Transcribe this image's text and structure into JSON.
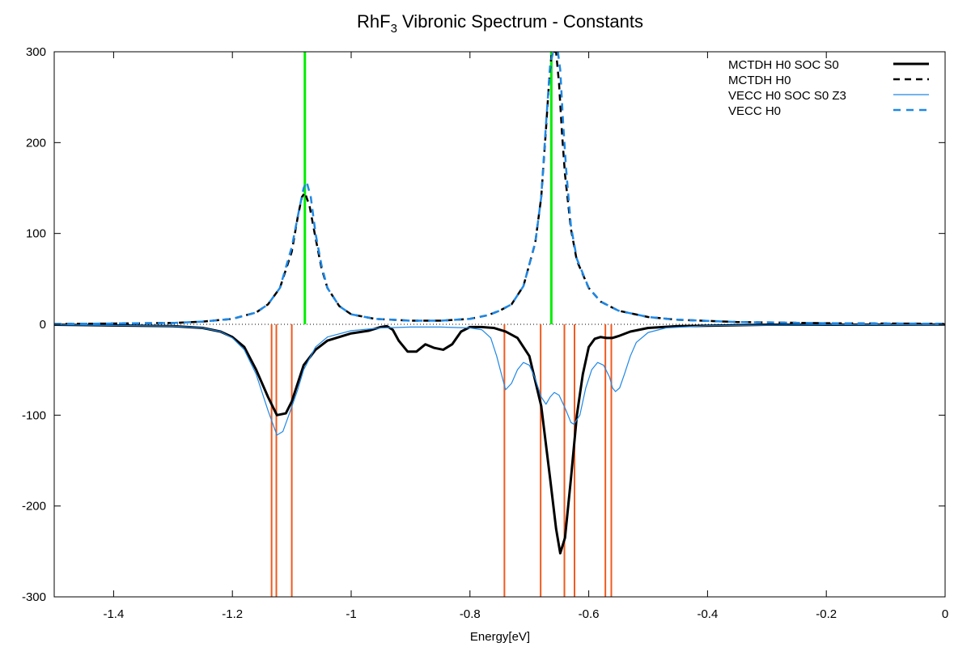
{
  "chart_data": {
    "type": "line",
    "title": {
      "prefix": "RhF",
      "subscript": "3",
      "suffix": " Vibronic Spectrum  - Constants"
    },
    "xlabel": "Energy[eV]",
    "ylabel": "",
    "xlim": [
      -1.5,
      0
    ],
    "ylim": [
      -300,
      300
    ],
    "x_ticks": [
      -1.4,
      -1.2,
      -1.0,
      -0.8,
      -0.6,
      -0.4,
      -0.2,
      0
    ],
    "x_tick_labels": [
      "-1.4",
      "-1.2",
      "-1",
      "-0.8",
      "-0.6",
      "-0.4",
      "-0.2",
      "0"
    ],
    "y_ticks": [
      -300,
      -200,
      -100,
      0,
      100,
      200,
      300
    ],
    "y_tick_labels": [
      "-300",
      "-200",
      "-100",
      "0",
      "100",
      "200",
      "300"
    ],
    "legend_position": "top-right",
    "series": [
      {
        "name": "MCTDH H0 SOC S0",
        "color": "#000000",
        "dash": "solid",
        "points": [
          [
            -1.5,
            -0.5
          ],
          [
            -1.3,
            -2
          ],
          [
            -1.25,
            -4
          ],
          [
            -1.22,
            -8
          ],
          [
            -1.2,
            -14
          ],
          [
            -1.18,
            -25
          ],
          [
            -1.16,
            -50
          ],
          [
            -1.14,
            -80
          ],
          [
            -1.125,
            -100
          ],
          [
            -1.11,
            -98
          ],
          [
            -1.1,
            -85
          ],
          [
            -1.09,
            -65
          ],
          [
            -1.08,
            -45
          ],
          [
            -1.06,
            -28
          ],
          [
            -1.04,
            -18
          ],
          [
            -1.0,
            -10
          ],
          [
            -0.97,
            -7
          ],
          [
            -0.95,
            -3
          ],
          [
            -0.94,
            -2
          ],
          [
            -0.93,
            -6
          ],
          [
            -0.92,
            -18
          ],
          [
            -0.905,
            -30
          ],
          [
            -0.89,
            -30
          ],
          [
            -0.875,
            -22
          ],
          [
            -0.86,
            -26
          ],
          [
            -0.845,
            -28
          ],
          [
            -0.83,
            -22
          ],
          [
            -0.815,
            -8
          ],
          [
            -0.8,
            -3
          ],
          [
            -0.78,
            -3
          ],
          [
            -0.76,
            -4
          ],
          [
            -0.74,
            -8
          ],
          [
            -0.72,
            -15
          ],
          [
            -0.7,
            -35
          ],
          [
            -0.68,
            -90
          ],
          [
            -0.665,
            -170
          ],
          [
            -0.655,
            -225
          ],
          [
            -0.648,
            -252
          ],
          [
            -0.64,
            -235
          ],
          [
            -0.63,
            -170
          ],
          [
            -0.62,
            -100
          ],
          [
            -0.61,
            -55
          ],
          [
            -0.6,
            -25
          ],
          [
            -0.59,
            -16
          ],
          [
            -0.58,
            -14
          ],
          [
            -0.57,
            -15
          ],
          [
            -0.56,
            -15
          ],
          [
            -0.55,
            -13
          ],
          [
            -0.53,
            -8
          ],
          [
            -0.5,
            -4
          ],
          [
            -0.45,
            -2
          ],
          [
            -0.3,
            -0.5
          ],
          [
            0,
            -0.2
          ]
        ]
      },
      {
        "name": "MCTDH H0",
        "color": "#000000",
        "dash": "8,6",
        "points": [
          [
            -1.5,
            0.3
          ],
          [
            -1.3,
            1.5
          ],
          [
            -1.25,
            3
          ],
          [
            -1.2,
            6
          ],
          [
            -1.16,
            13
          ],
          [
            -1.14,
            22
          ],
          [
            -1.12,
            40
          ],
          [
            -1.1,
            80
          ],
          [
            -1.09,
            118
          ],
          [
            -1.083,
            140
          ],
          [
            -1.078,
            145
          ],
          [
            -1.07,
            130
          ],
          [
            -1.06,
            95
          ],
          [
            -1.05,
            62
          ],
          [
            -1.04,
            40
          ],
          [
            -1.02,
            20
          ],
          [
            -1.0,
            11
          ],
          [
            -0.96,
            6
          ],
          [
            -0.9,
            4
          ],
          [
            -0.85,
            4
          ],
          [
            -0.8,
            6
          ],
          [
            -0.77,
            10
          ],
          [
            -0.75,
            15
          ],
          [
            -0.73,
            22
          ],
          [
            -0.71,
            42
          ],
          [
            -0.69,
            90
          ],
          [
            -0.68,
            140
          ],
          [
            -0.672,
            215
          ],
          [
            -0.666,
            275
          ],
          [
            -0.662,
            300
          ],
          [
            -0.655,
            300
          ],
          [
            -0.65,
            265
          ],
          [
            -0.645,
            210
          ],
          [
            -0.64,
            165
          ],
          [
            -0.63,
            105
          ],
          [
            -0.62,
            70
          ],
          [
            -0.6,
            40
          ],
          [
            -0.58,
            25
          ],
          [
            -0.55,
            15
          ],
          [
            -0.5,
            8
          ],
          [
            -0.45,
            5
          ],
          [
            -0.35,
            2.5
          ],
          [
            -0.2,
            1.2
          ],
          [
            0,
            0.6
          ]
        ]
      },
      {
        "name": "VECC    H0 SOC S0 Z3",
        "color": "#1e88e5",
        "dash": "solid",
        "points": [
          [
            -1.5,
            -0.5
          ],
          [
            -1.3,
            -2
          ],
          [
            -1.25,
            -4
          ],
          [
            -1.22,
            -8
          ],
          [
            -1.2,
            -15
          ],
          [
            -1.18,
            -28
          ],
          [
            -1.16,
            -55
          ],
          [
            -1.14,
            -95
          ],
          [
            -1.125,
            -122
          ],
          [
            -1.115,
            -118
          ],
          [
            -1.105,
            -100
          ],
          [
            -1.09,
            -72
          ],
          [
            -1.08,
            -50
          ],
          [
            -1.06,
            -25
          ],
          [
            -1.04,
            -14
          ],
          [
            -1.0,
            -7
          ],
          [
            -0.95,
            -4
          ],
          [
            -0.9,
            -3
          ],
          [
            -0.85,
            -3
          ],
          [
            -0.8,
            -4
          ],
          [
            -0.78,
            -6
          ],
          [
            -0.765,
            -15
          ],
          [
            -0.755,
            -35
          ],
          [
            -0.745,
            -60
          ],
          [
            -0.74,
            -72
          ],
          [
            -0.73,
            -65
          ],
          [
            -0.72,
            -50
          ],
          [
            -0.71,
            -42
          ],
          [
            -0.7,
            -45
          ],
          [
            -0.69,
            -60
          ],
          [
            -0.68,
            -80
          ],
          [
            -0.672,
            -88
          ],
          [
            -0.665,
            -80
          ],
          [
            -0.658,
            -75
          ],
          [
            -0.65,
            -78
          ],
          [
            -0.64,
            -92
          ],
          [
            -0.63,
            -108
          ],
          [
            -0.625,
            -110
          ],
          [
            -0.615,
            -100
          ],
          [
            -0.605,
            -70
          ],
          [
            -0.595,
            -50
          ],
          [
            -0.585,
            -42
          ],
          [
            -0.575,
            -45
          ],
          [
            -0.565,
            -58
          ],
          [
            -0.56,
            -70
          ],
          [
            -0.555,
            -74
          ],
          [
            -0.548,
            -70
          ],
          [
            -0.54,
            -55
          ],
          [
            -0.53,
            -35
          ],
          [
            -0.52,
            -20
          ],
          [
            -0.5,
            -9
          ],
          [
            -0.47,
            -4
          ],
          [
            -0.4,
            -1.5
          ],
          [
            -0.2,
            -0.5
          ],
          [
            0,
            -0.2
          ]
        ]
      },
      {
        "name": "VECC    H0",
        "color": "#1e88e5",
        "dash": "9,7",
        "points": [
          [
            -1.5,
            0.3
          ],
          [
            -1.3,
            1.5
          ],
          [
            -1.25,
            3
          ],
          [
            -1.2,
            6
          ],
          [
            -1.16,
            13
          ],
          [
            -1.14,
            22
          ],
          [
            -1.12,
            40
          ],
          [
            -1.1,
            85
          ],
          [
            -1.088,
            125
          ],
          [
            -1.08,
            150
          ],
          [
            -1.075,
            157
          ],
          [
            -1.068,
            140
          ],
          [
            -1.06,
            100
          ],
          [
            -1.05,
            65
          ],
          [
            -1.04,
            40
          ],
          [
            -1.02,
            20
          ],
          [
            -1.0,
            11
          ],
          [
            -0.96,
            6
          ],
          [
            -0.9,
            4
          ],
          [
            -0.85,
            4
          ],
          [
            -0.8,
            6
          ],
          [
            -0.77,
            10
          ],
          [
            -0.75,
            15
          ],
          [
            -0.73,
            22
          ],
          [
            -0.71,
            42
          ],
          [
            -0.69,
            90
          ],
          [
            -0.68,
            140
          ],
          [
            -0.672,
            220
          ],
          [
            -0.665,
            285
          ],
          [
            -0.66,
            300
          ],
          [
            -0.652,
            300
          ],
          [
            -0.648,
            280
          ],
          [
            -0.643,
            220
          ],
          [
            -0.638,
            170
          ],
          [
            -0.63,
            108
          ],
          [
            -0.62,
            72
          ],
          [
            -0.6,
            40
          ],
          [
            -0.58,
            25
          ],
          [
            -0.55,
            15
          ],
          [
            -0.5,
            8
          ],
          [
            -0.45,
            5
          ],
          [
            -0.35,
            2.5
          ],
          [
            -0.2,
            1.2
          ],
          [
            0,
            0.6
          ]
        ]
      }
    ],
    "reference_lines": {
      "green": {
        "color": "#00ee00",
        "x": [
          -1.078,
          -0.663
        ],
        "y_from": 0,
        "y_to": 300
      },
      "orange": {
        "color": "#f05a1e",
        "x": [
          -1.134,
          -1.126,
          -1.1,
          -0.742,
          -0.681,
          -0.641,
          -0.624,
          -0.572,
          -0.562
        ],
        "y_from": 0,
        "y_to": -300
      }
    },
    "zero_line": {
      "color": "#000000",
      "dotted": true
    }
  }
}
